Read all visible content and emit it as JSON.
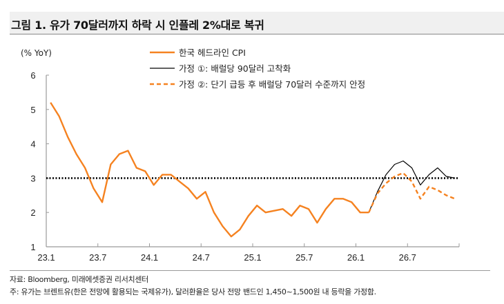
{
  "title": "그림 1. 유가 70달러까지 하락 시 인플레 2%대로 복귀",
  "chart_data": {
    "type": "line",
    "ylabel": "(% YoY)",
    "ylim": [
      1,
      6
    ],
    "yticks": [
      1,
      2,
      3,
      4,
      5,
      6
    ],
    "xtick_labels": [
      "23.1",
      "23.7",
      "24.1",
      "24.7",
      "25.1",
      "25.7",
      "26.1",
      "26.7"
    ],
    "x_range": [
      "23.1",
      "27.1"
    ],
    "reference_line": {
      "y": 3,
      "style": "dotted",
      "color": "#000000"
    },
    "legend_position": "top",
    "series": [
      {
        "name": "한국 헤드라인 CPI",
        "color": "#F58220",
        "style": "solid",
        "x": [
          "23.1",
          "23.2",
          "23.3",
          "23.4",
          "23.5",
          "23.6",
          "23.7",
          "23.8",
          "23.9",
          "23.10",
          "23.11",
          "23.12",
          "24.1",
          "24.2",
          "24.3",
          "24.4",
          "24.5",
          "24.6",
          "24.7",
          "24.8",
          "24.9",
          "24.10",
          "24.11",
          "24.12",
          "25.1",
          "25.2",
          "25.3",
          "25.4",
          "25.5",
          "25.6",
          "25.7",
          "25.8",
          "25.9",
          "25.10",
          "25.11",
          "25.12",
          "26.1",
          "26.2"
        ],
        "values": [
          5.2,
          4.8,
          4.2,
          3.7,
          3.3,
          2.7,
          2.3,
          3.4,
          3.7,
          3.8,
          3.3,
          3.2,
          2.8,
          3.1,
          3.1,
          2.9,
          2.7,
          2.4,
          2.6,
          2.0,
          1.6,
          1.3,
          1.5,
          1.9,
          2.2,
          2.0,
          2.05,
          2.1,
          1.9,
          2.2,
          2.1,
          1.7,
          2.1,
          2.4,
          2.4,
          2.3,
          2.0,
          2.0
        ]
      },
      {
        "name": "가정 ①: 배럴당 90달러 고착화",
        "color": "#000000",
        "style": "solid",
        "x": [
          "26.2",
          "26.3",
          "26.4",
          "26.5",
          "26.6",
          "26.7",
          "26.8",
          "26.9",
          "26.10",
          "26.11",
          "26.12"
        ],
        "values": [
          2.0,
          2.6,
          3.1,
          3.4,
          3.5,
          3.3,
          2.8,
          3.1,
          3.3,
          3.05,
          3.0
        ]
      },
      {
        "name": "가정 ②: 단기 급등 후 배럴당 70달러 수준까지 안정",
        "color": "#F58220",
        "style": "dashed",
        "x": [
          "26.2",
          "26.3",
          "26.4",
          "26.5",
          "26.6",
          "26.7",
          "26.8",
          "26.9",
          "26.10",
          "26.11",
          "26.12"
        ],
        "values": [
          2.0,
          2.55,
          2.85,
          3.05,
          3.15,
          2.9,
          2.4,
          2.75,
          2.65,
          2.5,
          2.4
        ]
      }
    ]
  },
  "footer": {
    "source": "자료: Bloomberg, 미래에셋증권 리서치센터",
    "note": "주: 유가는 브렌트유(한은 전망에 활용되는 국제유가), 달러환율은 당사 전망 밴드인 1,450~1,500원 내 등락을 가정함."
  }
}
